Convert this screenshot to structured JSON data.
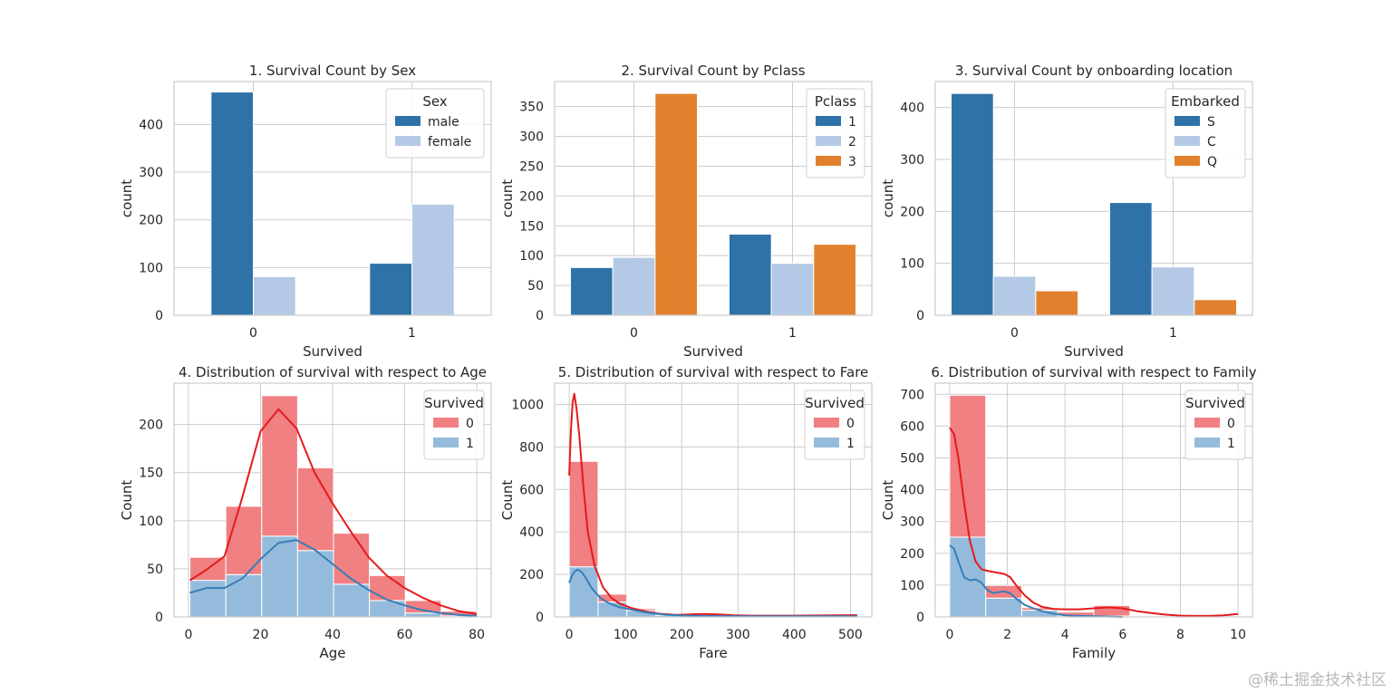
{
  "watermark": "@稀土掘金技术社区",
  "chart_data": [
    {
      "type": "bar",
      "title": "1. Survival Count by Sex",
      "xlabel": "Survived",
      "ylabel": "count",
      "categories": [
        "0",
        "1"
      ],
      "ylim": [
        0,
        490
      ],
      "yticks": [
        0,
        100,
        200,
        300,
        400
      ],
      "legend": {
        "title": "Sex",
        "position": "top-right"
      },
      "series": [
        {
          "name": "male",
          "color": "#2f72a8",
          "values": [
            468,
            109
          ]
        },
        {
          "name": "female",
          "color": "#b4c9e5",
          "values": [
            81,
            233
          ]
        }
      ]
    },
    {
      "type": "bar",
      "title": "2. Survival Count by Pclass",
      "xlabel": "Survived",
      "ylabel": "count",
      "categories": [
        "0",
        "1"
      ],
      "ylim": [
        0,
        392
      ],
      "yticks": [
        0,
        50,
        100,
        150,
        200,
        250,
        300,
        350
      ],
      "legend": {
        "title": "Pclass",
        "position": "top-right"
      },
      "series": [
        {
          "name": "1",
          "color": "#2f72a8",
          "values": [
            80,
            136
          ]
        },
        {
          "name": "2",
          "color": "#b4c9e5",
          "values": [
            97,
            87
          ]
        },
        {
          "name": "3",
          "color": "#e2812d",
          "values": [
            372,
            119
          ]
        }
      ]
    },
    {
      "type": "bar",
      "title": "3. Survival Count by onboarding location",
      "xlabel": "Survived",
      "ylabel": "count",
      "categories": [
        "0",
        "1"
      ],
      "ylim": [
        0,
        450
      ],
      "yticks": [
        0,
        100,
        200,
        300,
        400
      ],
      "legend": {
        "title": "Embarked",
        "position": "top-right"
      },
      "series": [
        {
          "name": "S",
          "color": "#2f72a8",
          "values": [
            427,
            217
          ]
        },
        {
          "name": "C",
          "color": "#b4c9e5",
          "values": [
            75,
            93
          ]
        },
        {
          "name": "Q",
          "color": "#e2812d",
          "values": [
            47,
            30
          ]
        }
      ]
    },
    {
      "type": "histogram",
      "title": "4. Distribution of survival with respect to Age",
      "xlabel": "Age",
      "ylabel": "Count",
      "xlim": [
        -4,
        84
      ],
      "ylim": [
        0,
        243
      ],
      "xticks": [
        0,
        20,
        40,
        60,
        80
      ],
      "yticks": [
        0,
        50,
        100,
        150,
        200
      ],
      "bin_edges": [
        0.42,
        10.38,
        20.34,
        30.29,
        40.25,
        50.21,
        60.17,
        70.13,
        80
      ],
      "legend": {
        "title": "Survived",
        "position": "top-right"
      },
      "series": [
        {
          "name": "0",
          "color": "#f08082",
          "kde_color": "#e41a1c",
          "values": [
            24,
            71,
            146,
            86,
            53,
            26,
            13,
            5
          ],
          "kde": [
            [
              0.4,
              38
            ],
            [
              5,
              49
            ],
            [
              10,
              63
            ],
            [
              15,
              125
            ],
            [
              20,
              193
            ],
            [
              25,
              216
            ],
            [
              30,
              196
            ],
            [
              35,
              150
            ],
            [
              40,
              118
            ],
            [
              45,
              89
            ],
            [
              50,
              62
            ],
            [
              55,
              43
            ],
            [
              60,
              30
            ],
            [
              65,
              20
            ],
            [
              70,
              12
            ],
            [
              75,
              6
            ],
            [
              80,
              3
            ]
          ]
        },
        {
          "name": "1",
          "color": "#95bbdc",
          "kde_color": "#377eb8",
          "values": [
            38,
            44,
            84,
            69,
            34,
            17,
            4,
            1
          ],
          "kde": [
            [
              0.4,
              25
            ],
            [
              5,
              30
            ],
            [
              10,
              30
            ],
            [
              15,
              40
            ],
            [
              20,
              60
            ],
            [
              25,
              77
            ],
            [
              30,
              80
            ],
            [
              35,
              70
            ],
            [
              40,
              55
            ],
            [
              45,
              40
            ],
            [
              50,
              28
            ],
            [
              55,
              18
            ],
            [
              60,
              12
            ],
            [
              65,
              7
            ],
            [
              70,
              4
            ],
            [
              75,
              2
            ],
            [
              80,
              1
            ]
          ]
        }
      ]
    },
    {
      "type": "histogram",
      "title": "5. Distribution of survival with respect to Fare",
      "xlabel": "Fare",
      "ylabel": "Count",
      "xlim": [
        -26,
        538
      ],
      "ylim": [
        0,
        1100
      ],
      "xticks": [
        0,
        100,
        200,
        300,
        400,
        500
      ],
      "yticks": [
        0,
        200,
        400,
        600,
        800,
        1000
      ],
      "bin_edges": [
        0,
        51.23,
        102.47,
        153.7,
        204.93,
        256.16,
        307.4,
        358.63,
        409.86,
        461.09,
        512.33
      ],
      "legend": {
        "title": "Survived",
        "position": "top-right"
      },
      "series": [
        {
          "name": "0",
          "color": "#f08082",
          "kde_color": "#e41a1c",
          "values": [
            496,
            37,
            9,
            1,
            5,
            1,
            0,
            0,
            0,
            0
          ],
          "kde": [
            [
              0,
              665
            ],
            [
              3,
              880
            ],
            [
              6,
              1010
            ],
            [
              9,
              1050
            ],
            [
              13,
              980
            ],
            [
              18,
              850
            ],
            [
              25,
              620
            ],
            [
              33,
              400
            ],
            [
              45,
              240
            ],
            [
              60,
              140
            ],
            [
              75,
              90
            ],
            [
              90,
              62
            ],
            [
              110,
              42
            ],
            [
              135,
              26
            ],
            [
              160,
              15
            ],
            [
              190,
              10
            ],
            [
              215,
              12
            ],
            [
              240,
              14
            ],
            [
              265,
              12
            ],
            [
              290,
              8
            ],
            [
              320,
              6
            ],
            [
              360,
              6
            ],
            [
              400,
              6
            ],
            [
              450,
              7
            ],
            [
              500,
              8
            ],
            [
              512,
              8
            ]
          ]
        },
        {
          "name": "1",
          "color": "#95bbdc",
          "kde_color": "#377eb8",
          "values": [
            236,
            70,
            30,
            8,
            10,
            6,
            0,
            0,
            0,
            3
          ],
          "kde": [
            [
              0,
              160
            ],
            [
              5,
              195
            ],
            [
              10,
              215
            ],
            [
              15,
              222
            ],
            [
              22,
              212
            ],
            [
              30,
              180
            ],
            [
              40,
              135
            ],
            [
              55,
              90
            ],
            [
              70,
              65
            ],
            [
              90,
              45
            ],
            [
              110,
              35
            ],
            [
              130,
              24
            ],
            [
              150,
              16
            ],
            [
              175,
              10
            ],
            [
              200,
              7
            ],
            [
              230,
              5
            ],
            [
              270,
              4
            ],
            [
              320,
              3
            ],
            [
              380,
              3
            ],
            [
              450,
              3
            ],
            [
              512,
              3
            ]
          ]
        }
      ]
    },
    {
      "type": "histogram",
      "title": "6. Distribution of survival with respect to Family",
      "xlabel": "Family",
      "ylabel": "Count",
      "xlim": [
        -0.5,
        10.5
      ],
      "ylim": [
        0,
        735
      ],
      "xticks": [
        0,
        2,
        4,
        6,
        8,
        10
      ],
      "yticks": [
        0,
        100,
        200,
        300,
        400,
        500,
        600,
        700
      ],
      "bin_edges": [
        0,
        1.25,
        2.5,
        3.75,
        5,
        6.25,
        7.5,
        8.75,
        10
      ],
      "legend": {
        "title": "Survived",
        "position": "top-right"
      },
      "series": [
        {
          "name": "0",
          "color": "#f08082",
          "kde_color": "#e41a1c",
          "values": [
            446,
            40,
            8,
            12,
            33,
            0,
            0,
            0
          ],
          "kde": [
            [
              0,
              595
            ],
            [
              0.15,
              575
            ],
            [
              0.3,
              500
            ],
            [
              0.5,
              360
            ],
            [
              0.7,
              240
            ],
            [
              0.9,
              175
            ],
            [
              1.1,
              150
            ],
            [
              1.3,
              145
            ],
            [
              1.6,
              140
            ],
            [
              1.9,
              135
            ],
            [
              2.1,
              125
            ],
            [
              2.3,
              100
            ],
            [
              2.6,
              68
            ],
            [
              2.9,
              45
            ],
            [
              3.2,
              32
            ],
            [
              3.6,
              25
            ],
            [
              4,
              24
            ],
            [
              4.5,
              24
            ],
            [
              5,
              27
            ],
            [
              5.5,
              30
            ],
            [
              6,
              27
            ],
            [
              6.5,
              18
            ],
            [
              7,
              12
            ],
            [
              7.5,
              7
            ],
            [
              8,
              4
            ],
            [
              8.5,
              3
            ],
            [
              9,
              3
            ],
            [
              9.5,
              5
            ],
            [
              10,
              9
            ]
          ]
        },
        {
          "name": "1",
          "color": "#95bbdc",
          "kde_color": "#377eb8",
          "values": [
            251,
            59,
            21,
            3,
            3,
            0,
            0,
            0
          ],
          "kde": [
            [
              0,
              225
            ],
            [
              0.15,
              215
            ],
            [
              0.3,
              175
            ],
            [
              0.5,
              125
            ],
            [
              0.7,
              115
            ],
            [
              0.9,
              118
            ],
            [
              1.1,
              108
            ],
            [
              1.3,
              85
            ],
            [
              1.5,
              75
            ],
            [
              1.7,
              78
            ],
            [
              1.9,
              80
            ],
            [
              2.1,
              75
            ],
            [
              2.3,
              58
            ],
            [
              2.6,
              38
            ],
            [
              2.9,
              27
            ],
            [
              3.2,
              18
            ],
            [
              3.6,
              10
            ],
            [
              4,
              5
            ],
            [
              4.5,
              3
            ],
            [
              5,
              2
            ],
            [
              5.5,
              1
            ],
            [
              6,
              0
            ]
          ]
        }
      ]
    }
  ]
}
